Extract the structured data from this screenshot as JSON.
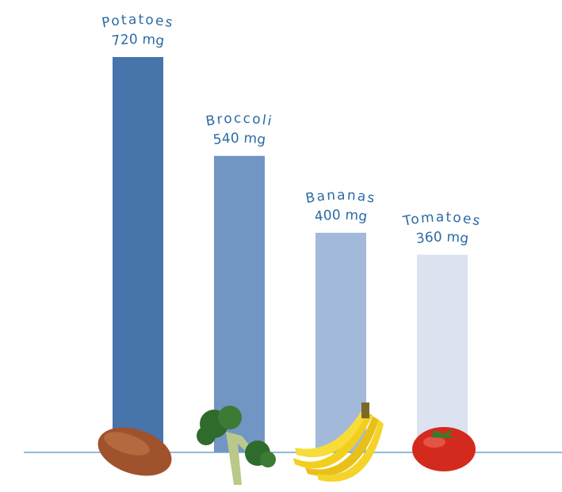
{
  "chart_data": {
    "type": "bar",
    "categories": [
      "Potatoes",
      "Broccoli",
      "Bananas",
      "Tomatoes"
    ],
    "values": [
      720,
      540,
      400,
      360
    ],
    "value_labels": [
      "720 mg",
      "540 mg",
      "400 mg",
      "360 mg"
    ],
    "colors": [
      "#4674ab",
      "#7196c4",
      "#a3b9da",
      "#dce2ef"
    ],
    "ylim": [
      0,
      720
    ]
  }
}
